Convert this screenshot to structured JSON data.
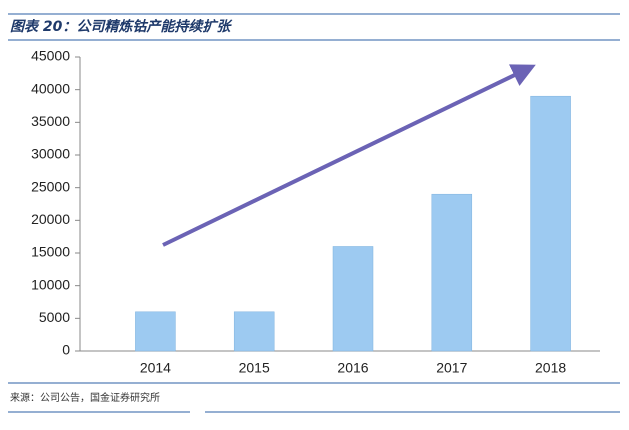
{
  "chart_data": {
    "type": "bar",
    "title": "图表 20：公司精炼钴产能持续扩张",
    "categories": [
      "2014",
      "2015",
      "2016",
      "2017",
      "2018"
    ],
    "values": [
      6000,
      6000,
      16000,
      24000,
      39000
    ],
    "color": "#9dcaf1",
    "ylim": [
      0,
      45000
    ],
    "yticks": [
      0,
      5000,
      10000,
      15000,
      20000,
      25000,
      30000,
      35000,
      40000,
      45000
    ],
    "source": "来源：公司公告，国金证券研究所"
  }
}
